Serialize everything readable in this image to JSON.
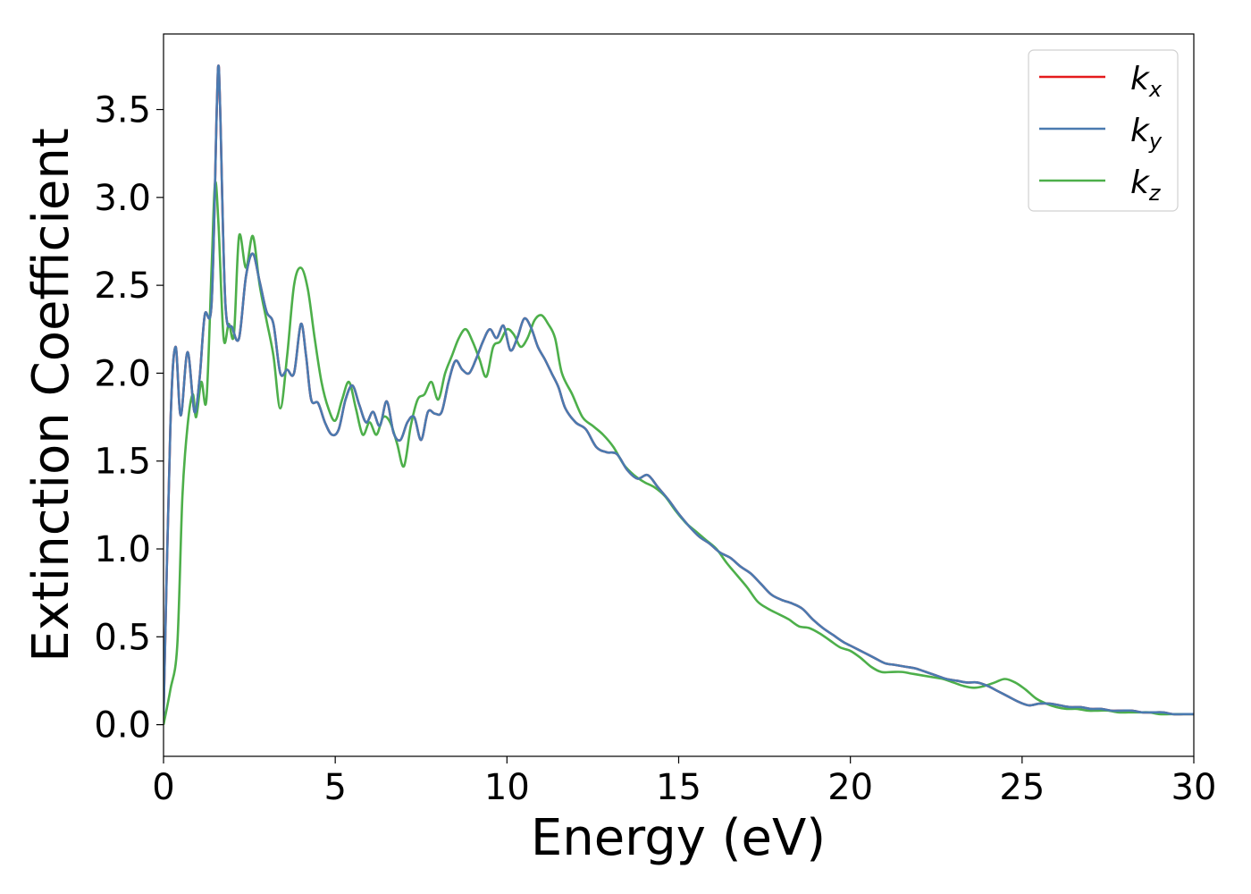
{
  "chart_data": {
    "type": "line",
    "title": "",
    "xlabel": "Energy (eV)",
    "ylabel": "Extinction Coefficient",
    "xlim": [
      0,
      30
    ],
    "ylim": [
      -0.18,
      3.93
    ],
    "xticks": [
      0,
      5,
      10,
      15,
      20,
      25,
      30
    ],
    "xtick_labels": [
      "0",
      "5",
      "10",
      "15",
      "20",
      "25",
      "30"
    ],
    "yticks": [
      0.0,
      0.5,
      1.0,
      1.5,
      2.0,
      2.5,
      3.0,
      3.5
    ],
    "ytick_labels": [
      "0.0",
      "0.5",
      "1.0",
      "1.5",
      "2.0",
      "2.5",
      "3.0",
      "3.5"
    ],
    "grid": false,
    "legend_position": "top-right",
    "series": [
      {
        "name": "k_x",
        "label_main": "k",
        "label_sub": "x",
        "color": "#e41a1c",
        "x": [
          0,
          0.2,
          0.35,
          0.5,
          0.7,
          0.9,
          1.05,
          1.2,
          1.4,
          1.55,
          1.6,
          1.65,
          1.8,
          2.0,
          2.2,
          2.4,
          2.6,
          2.8,
          3.0,
          3.2,
          3.4,
          3.6,
          3.8,
          4.0,
          4.15,
          4.3,
          4.5,
          4.7,
          4.9,
          5.1,
          5.3,
          5.5,
          5.7,
          5.9,
          6.1,
          6.3,
          6.5,
          6.7,
          6.9,
          7.1,
          7.3,
          7.5,
          7.7,
          7.9,
          8.1,
          8.3,
          8.5,
          8.7,
          8.9,
          9.1,
          9.3,
          9.5,
          9.7,
          9.9,
          10.1,
          10.3,
          10.5,
          10.7,
          10.9,
          11.1,
          11.3,
          11.5,
          11.7,
          12.0,
          12.3,
          12.6,
          12.9,
          13.2,
          13.5,
          13.8,
          14.1,
          14.4,
          14.7,
          15.0,
          15.3,
          15.6,
          15.9,
          16.2,
          16.5,
          16.8,
          17.1,
          17.4,
          17.7,
          18.0,
          18.3,
          18.6,
          18.9,
          19.2,
          19.5,
          19.8,
          20.1,
          20.4,
          20.7,
          21.0,
          21.3,
          21.6,
          21.9,
          22.2,
          22.5,
          22.8,
          23.1,
          23.4,
          23.7,
          24.0,
          24.3,
          24.6,
          24.9,
          25.2,
          25.5,
          25.8,
          26.1,
          26.4,
          26.7,
          27.0,
          27.3,
          27.6,
          27.9,
          28.2,
          28.5,
          28.8,
          29.1,
          29.4,
          29.7,
          30.0
        ],
        "y": [
          0.05,
          1.7,
          2.15,
          1.76,
          2.12,
          1.78,
          1.97,
          2.33,
          2.4,
          3.5,
          3.75,
          3.5,
          2.4,
          2.26,
          2.2,
          2.55,
          2.68,
          2.52,
          2.35,
          2.28,
          2.0,
          2.02,
          2.0,
          2.28,
          2.1,
          1.85,
          1.83,
          1.72,
          1.65,
          1.68,
          1.85,
          1.93,
          1.82,
          1.72,
          1.78,
          1.7,
          1.84,
          1.66,
          1.62,
          1.72,
          1.75,
          1.62,
          1.78,
          1.77,
          1.78,
          1.95,
          2.07,
          2.02,
          2.0,
          2.08,
          2.18,
          2.25,
          2.2,
          2.27,
          2.13,
          2.2,
          2.31,
          2.26,
          2.15,
          2.08,
          2.0,
          1.92,
          1.8,
          1.72,
          1.68,
          1.58,
          1.55,
          1.54,
          1.45,
          1.4,
          1.42,
          1.35,
          1.28,
          1.2,
          1.13,
          1.07,
          1.03,
          0.98,
          0.95,
          0.9,
          0.86,
          0.8,
          0.74,
          0.71,
          0.69,
          0.66,
          0.6,
          0.55,
          0.51,
          0.47,
          0.44,
          0.41,
          0.38,
          0.35,
          0.34,
          0.33,
          0.32,
          0.3,
          0.28,
          0.26,
          0.25,
          0.24,
          0.24,
          0.22,
          0.19,
          0.16,
          0.13,
          0.11,
          0.12,
          0.12,
          0.11,
          0.1,
          0.1,
          0.09,
          0.09,
          0.08,
          0.08,
          0.08,
          0.07,
          0.07,
          0.07,
          0.06,
          0.06,
          0.06
        ]
      },
      {
        "name": "k_y",
        "label_main": "k",
        "label_sub": "y",
        "color": "#4a7ab0",
        "x": [
          0,
          0.2,
          0.35,
          0.5,
          0.7,
          0.9,
          1.05,
          1.2,
          1.4,
          1.55,
          1.6,
          1.65,
          1.8,
          2.0,
          2.2,
          2.4,
          2.6,
          2.8,
          3.0,
          3.2,
          3.4,
          3.6,
          3.8,
          4.0,
          4.15,
          4.3,
          4.5,
          4.7,
          4.9,
          5.1,
          5.3,
          5.5,
          5.7,
          5.9,
          6.1,
          6.3,
          6.5,
          6.7,
          6.9,
          7.1,
          7.3,
          7.5,
          7.7,
          7.9,
          8.1,
          8.3,
          8.5,
          8.7,
          8.9,
          9.1,
          9.3,
          9.5,
          9.7,
          9.9,
          10.1,
          10.3,
          10.5,
          10.7,
          10.9,
          11.1,
          11.3,
          11.5,
          11.7,
          12.0,
          12.3,
          12.6,
          12.9,
          13.2,
          13.5,
          13.8,
          14.1,
          14.4,
          14.7,
          15.0,
          15.3,
          15.6,
          15.9,
          16.2,
          16.5,
          16.8,
          17.1,
          17.4,
          17.7,
          18.0,
          18.3,
          18.6,
          18.9,
          19.2,
          19.5,
          19.8,
          20.1,
          20.4,
          20.7,
          21.0,
          21.3,
          21.6,
          21.9,
          22.2,
          22.5,
          22.8,
          23.1,
          23.4,
          23.7,
          24.0,
          24.3,
          24.6,
          24.9,
          25.2,
          25.5,
          25.8,
          26.1,
          26.4,
          26.7,
          27.0,
          27.3,
          27.6,
          27.9,
          28.2,
          28.5,
          28.8,
          29.1,
          29.4,
          29.7,
          30.0
        ],
        "y": [
          0.05,
          1.7,
          2.15,
          1.76,
          2.12,
          1.78,
          1.97,
          2.33,
          2.4,
          3.5,
          3.75,
          3.5,
          2.4,
          2.26,
          2.2,
          2.55,
          2.68,
          2.52,
          2.35,
          2.28,
          2.0,
          2.02,
          2.0,
          2.28,
          2.1,
          1.85,
          1.83,
          1.72,
          1.65,
          1.68,
          1.85,
          1.93,
          1.82,
          1.72,
          1.78,
          1.7,
          1.84,
          1.66,
          1.62,
          1.72,
          1.75,
          1.62,
          1.78,
          1.77,
          1.78,
          1.95,
          2.07,
          2.02,
          2.0,
          2.08,
          2.18,
          2.25,
          2.2,
          2.27,
          2.13,
          2.2,
          2.31,
          2.26,
          2.15,
          2.08,
          2.0,
          1.92,
          1.8,
          1.72,
          1.68,
          1.58,
          1.55,
          1.54,
          1.45,
          1.4,
          1.42,
          1.35,
          1.28,
          1.2,
          1.13,
          1.07,
          1.03,
          0.98,
          0.95,
          0.9,
          0.86,
          0.8,
          0.74,
          0.71,
          0.69,
          0.66,
          0.6,
          0.55,
          0.51,
          0.47,
          0.44,
          0.41,
          0.38,
          0.35,
          0.34,
          0.33,
          0.32,
          0.3,
          0.28,
          0.26,
          0.25,
          0.24,
          0.24,
          0.22,
          0.19,
          0.16,
          0.13,
          0.11,
          0.12,
          0.12,
          0.11,
          0.1,
          0.1,
          0.09,
          0.09,
          0.08,
          0.08,
          0.08,
          0.07,
          0.07,
          0.07,
          0.06,
          0.06,
          0.06
        ]
      },
      {
        "name": "k_z",
        "label_main": "k",
        "label_sub": "z",
        "color": "#4daf4a",
        "x": [
          0,
          0.2,
          0.4,
          0.55,
          0.7,
          0.85,
          0.95,
          1.1,
          1.25,
          1.4,
          1.5,
          1.6,
          1.75,
          1.9,
          2.05,
          2.2,
          2.4,
          2.6,
          2.8,
          3.0,
          3.2,
          3.4,
          3.6,
          3.8,
          4.0,
          4.2,
          4.4,
          4.6,
          4.8,
          5.0,
          5.2,
          5.4,
          5.6,
          5.8,
          6.0,
          6.2,
          6.4,
          6.6,
          6.8,
          7.0,
          7.2,
          7.4,
          7.6,
          7.8,
          8.0,
          8.2,
          8.4,
          8.6,
          8.8,
          9.0,
          9.2,
          9.4,
          9.6,
          9.8,
          10.0,
          10.2,
          10.4,
          10.6,
          10.8,
          11.0,
          11.2,
          11.4,
          11.6,
          11.9,
          12.2,
          12.5,
          12.8,
          13.1,
          13.4,
          13.7,
          14.0,
          14.3,
          14.6,
          14.9,
          15.2,
          15.5,
          15.8,
          16.1,
          16.4,
          16.7,
          17.0,
          17.3,
          17.6,
          17.9,
          18.2,
          18.5,
          18.8,
          19.1,
          19.4,
          19.7,
          20.0,
          20.3,
          20.6,
          20.9,
          21.2,
          21.5,
          21.8,
          22.1,
          22.4,
          22.7,
          23.0,
          23.3,
          23.6,
          23.9,
          24.2,
          24.5,
          24.8,
          25.1,
          25.4,
          25.7,
          26.0,
          26.3,
          26.6,
          26.9,
          27.2,
          27.5,
          27.8,
          28.1,
          28.4,
          28.7,
          29.0,
          29.3,
          29.6,
          30.0
        ],
        "y": [
          0.0,
          0.2,
          0.45,
          1.3,
          1.7,
          1.88,
          1.75,
          1.95,
          1.85,
          2.6,
          3.08,
          2.85,
          2.2,
          2.28,
          2.22,
          2.78,
          2.6,
          2.78,
          2.5,
          2.3,
          2.1,
          1.8,
          2.1,
          2.5,
          2.6,
          2.48,
          2.2,
          1.95,
          1.8,
          1.73,
          1.85,
          1.95,
          1.8,
          1.65,
          1.72,
          1.65,
          1.75,
          1.72,
          1.6,
          1.47,
          1.7,
          1.85,
          1.88,
          1.95,
          1.85,
          2.0,
          2.1,
          2.2,
          2.25,
          2.18,
          2.08,
          1.98,
          2.15,
          2.18,
          2.25,
          2.22,
          2.15,
          2.2,
          2.3,
          2.33,
          2.28,
          2.2,
          2.0,
          1.88,
          1.75,
          1.7,
          1.65,
          1.58,
          1.48,
          1.42,
          1.38,
          1.35,
          1.3,
          1.22,
          1.15,
          1.1,
          1.05,
          1.0,
          0.92,
          0.85,
          0.78,
          0.7,
          0.66,
          0.63,
          0.6,
          0.56,
          0.55,
          0.52,
          0.48,
          0.44,
          0.42,
          0.38,
          0.33,
          0.3,
          0.3,
          0.3,
          0.29,
          0.28,
          0.27,
          0.26,
          0.24,
          0.22,
          0.21,
          0.22,
          0.24,
          0.26,
          0.24,
          0.2,
          0.15,
          0.12,
          0.1,
          0.09,
          0.09,
          0.08,
          0.08,
          0.08,
          0.07,
          0.07,
          0.07,
          0.07,
          0.06,
          0.06,
          0.06,
          0.06
        ]
      }
    ]
  }
}
